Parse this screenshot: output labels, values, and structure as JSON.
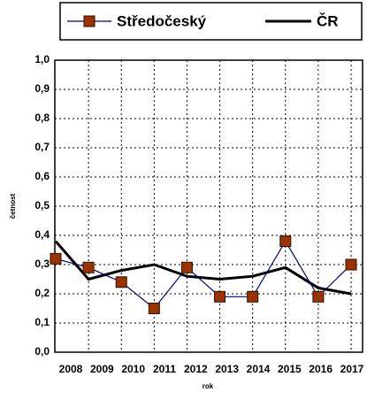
{
  "chart_data": {
    "type": "line",
    "categories": [
      "2008",
      "2009",
      "2010",
      "2011",
      "2012",
      "2013",
      "2014",
      "2015",
      "2016",
      "2017"
    ],
    "series": [
      {
        "name": "Středočeský",
        "color": "#000080",
        "marker_color": "#993300",
        "values": [
          0.32,
          0.29,
          0.24,
          0.15,
          0.29,
          0.19,
          0.19,
          0.38,
          0.19,
          0.3
        ]
      },
      {
        "name": "ČR",
        "color": "#000000",
        "values": [
          0.38,
          0.25,
          0.28,
          0.3,
          0.26,
          0.25,
          0.26,
          0.29,
          0.22,
          0.2
        ]
      }
    ],
    "ylim": [
      0,
      1
    ],
    "yticks": [
      {
        "value": 0,
        "label": "0,0"
      },
      {
        "value": 0.1,
        "label": "0,1"
      },
      {
        "value": 0.2,
        "label": "0,2"
      },
      {
        "value": 0.3,
        "label": "0,3"
      },
      {
        "value": 0.4,
        "label": "0,4"
      },
      {
        "value": 0.5,
        "label": "0,5"
      },
      {
        "value": 0.6,
        "label": "0,6"
      },
      {
        "value": 0.7,
        "label": "0,7"
      },
      {
        "value": 0.8,
        "label": "0,8"
      },
      {
        "value": 0.9,
        "label": "0,9"
      },
      {
        "value": 1,
        "label": "1,0"
      }
    ],
    "xlabel": "rok",
    "ylabel": "četnost",
    "grid": true,
    "legend": "top"
  }
}
